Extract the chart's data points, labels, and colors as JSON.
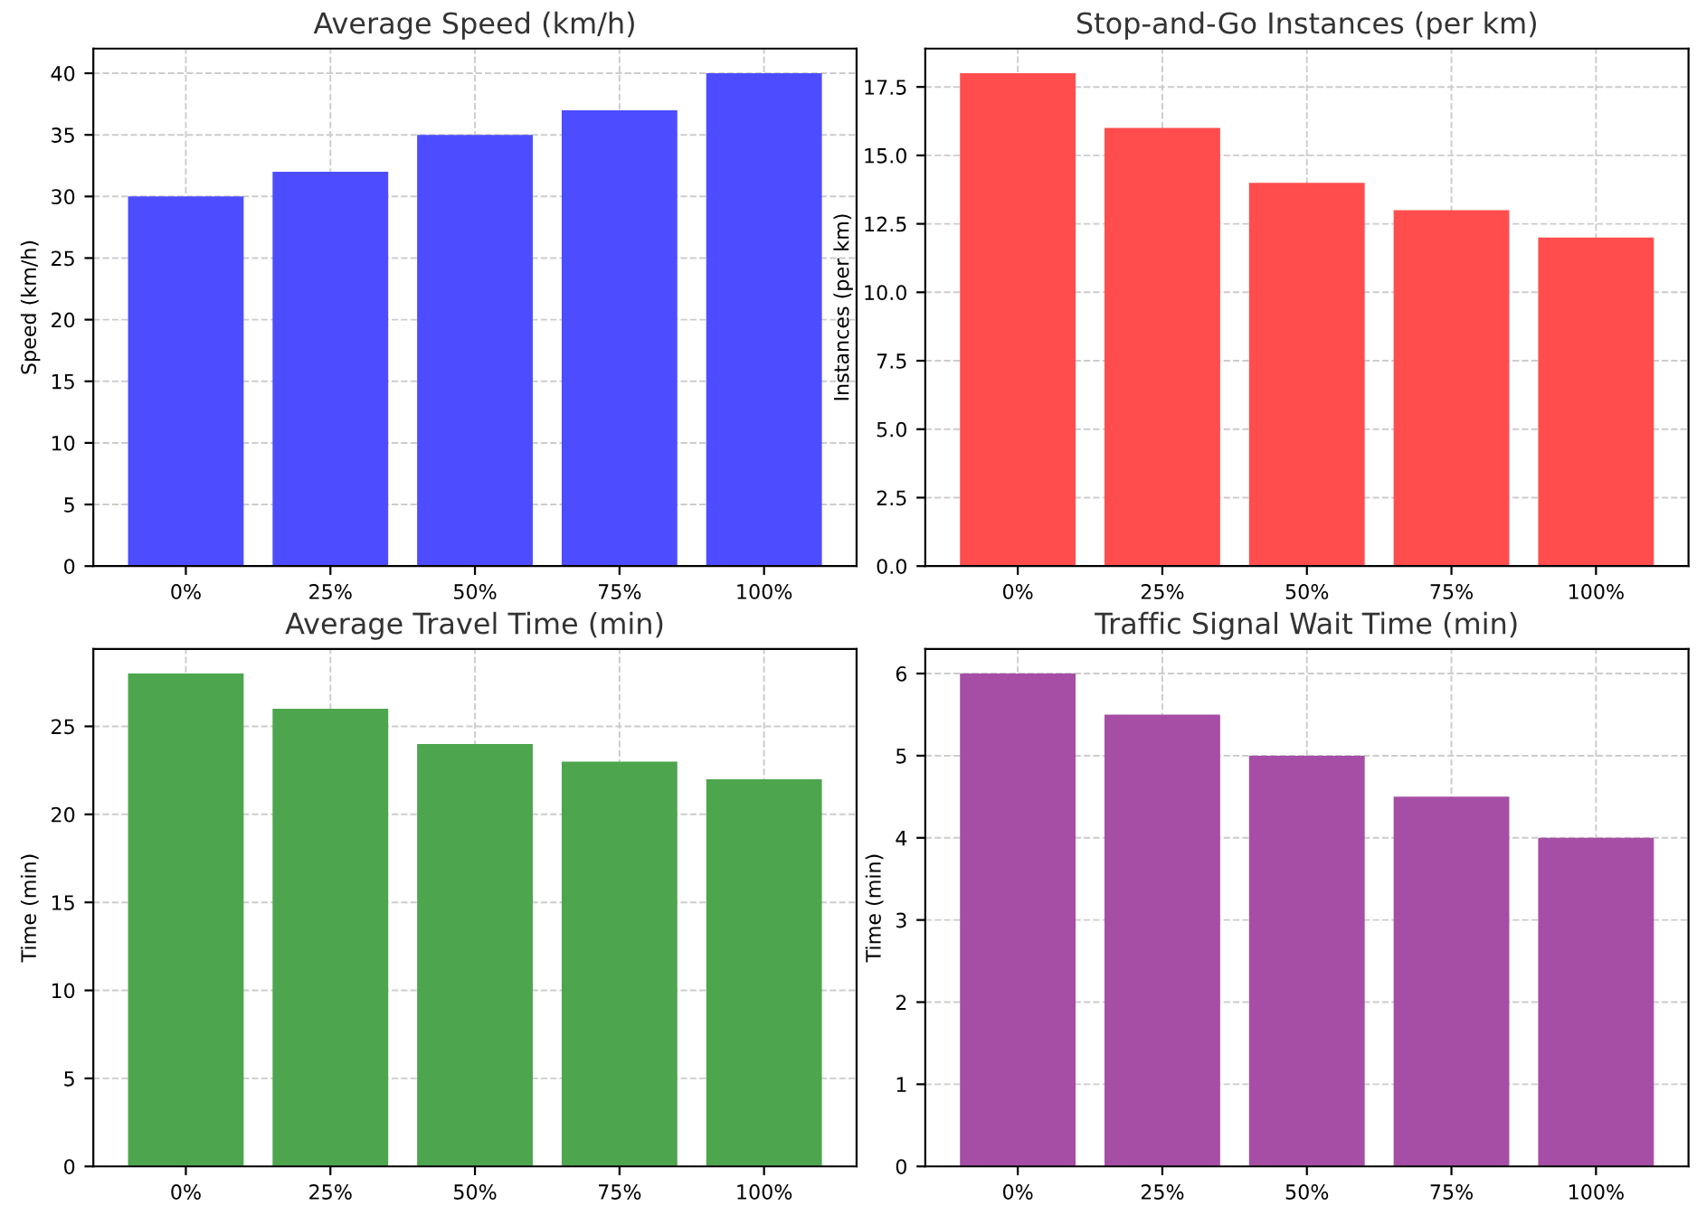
{
  "chart_data": [
    {
      "type": "bar",
      "title": "Average Speed (km/h)",
      "ylabel": "Speed (km/h)",
      "categories": [
        "0%",
        "25%",
        "50%",
        "75%",
        "100%"
      ],
      "values": [
        30,
        32,
        35,
        37,
        40
      ],
      "color": "#4d4dff",
      "ylim": [
        0,
        42
      ],
      "yticks": [
        0,
        5,
        10,
        15,
        20,
        25,
        30,
        35,
        40
      ],
      "grid": true
    },
    {
      "type": "bar",
      "title": "Stop-and-Go Instances (per km)",
      "ylabel": "Instances (per km)",
      "categories": [
        "0%",
        "25%",
        "50%",
        "75%",
        "100%"
      ],
      "values": [
        18,
        16,
        14,
        13,
        12
      ],
      "color": "#ff4d4d",
      "ylim": [
        0,
        18.9
      ],
      "yticks": [
        {
          "value": 0,
          "label": "0.0"
        },
        2.5,
        {
          "value": 5,
          "label": "5.0"
        },
        7.5,
        {
          "value": 10,
          "label": "10.0"
        },
        12.5,
        {
          "value": 15,
          "label": "15.0"
        },
        17.5
      ],
      "grid": true
    },
    {
      "type": "bar",
      "title": "Average Travel Time (min)",
      "ylabel": "Time (min)",
      "categories": [
        "0%",
        "25%",
        "50%",
        "75%",
        "100%"
      ],
      "values": [
        28,
        26,
        24,
        23,
        22
      ],
      "color": "#4da64d",
      "ylim": [
        0,
        29.4
      ],
      "yticks": [
        0,
        5,
        10,
        15,
        20,
        25
      ],
      "grid": true
    },
    {
      "type": "bar",
      "title": "Traffic Signal Wait Time (min)",
      "ylabel": "Time (min)",
      "categories": [
        "0%",
        "25%",
        "50%",
        "75%",
        "100%"
      ],
      "values": [
        6,
        5.5,
        5,
        4.5,
        4
      ],
      "color": "#a64da6",
      "ylim": [
        0,
        6.3
      ],
      "yticks": [
        0,
        1,
        2,
        3,
        4,
        5,
        6
      ],
      "grid": true
    }
  ]
}
